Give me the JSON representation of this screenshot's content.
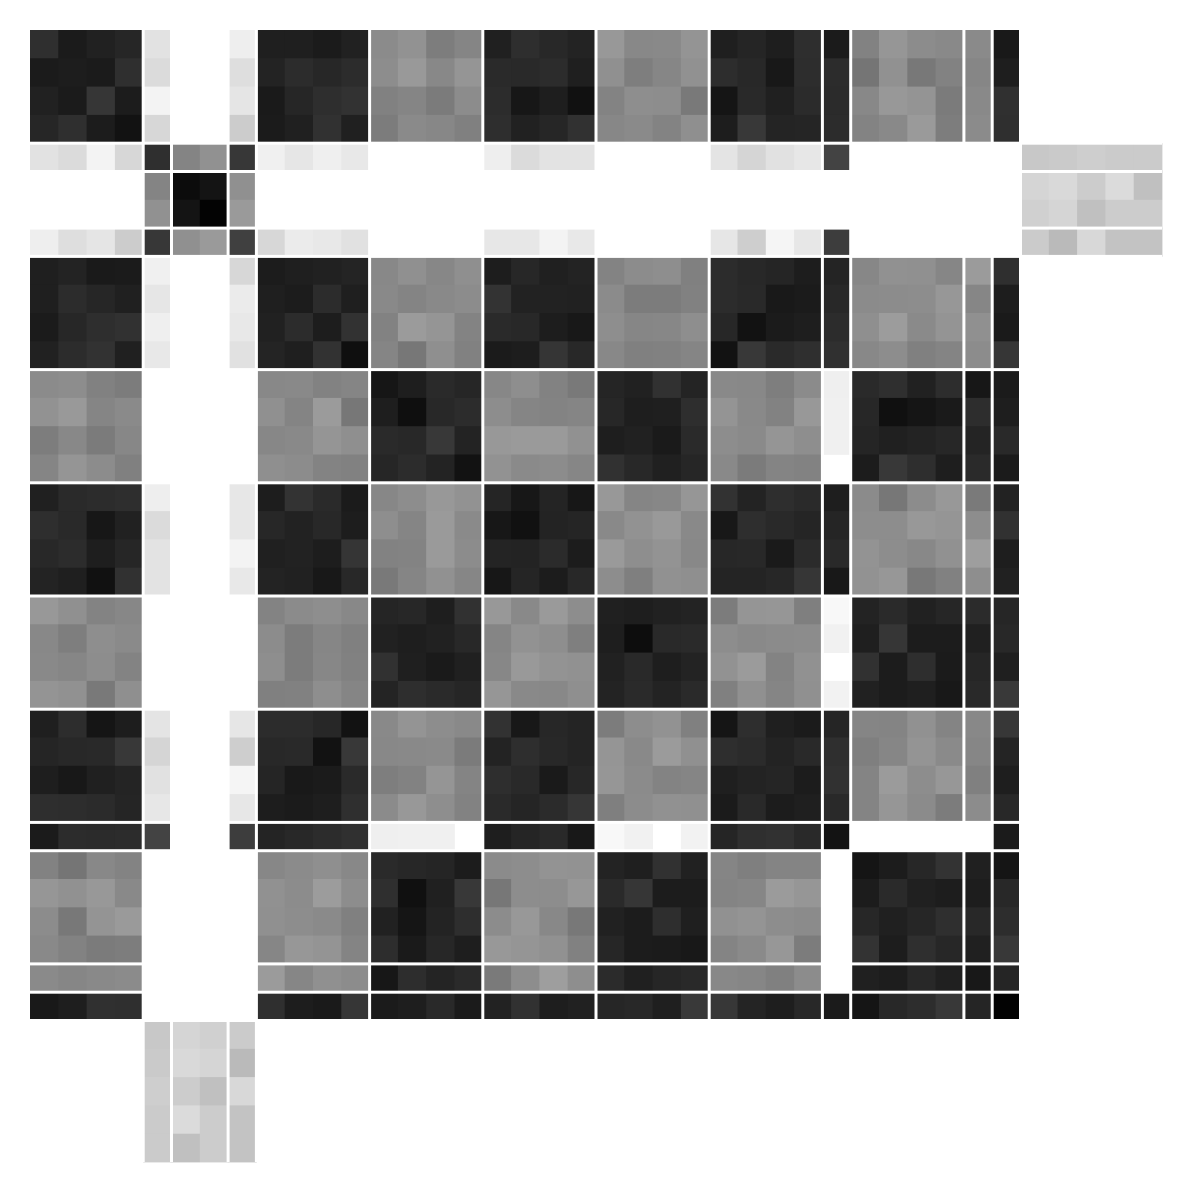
{
  "chart_data": {
    "type": "heatmap",
    "colormap": "gray_r",
    "value_range": [
      0,
      1
    ],
    "grid": false,
    "axes_visible": false,
    "title": "",
    "xlabel": "",
    "ylabel": "",
    "n_bins": 40,
    "clusters": [
      {
        "id": "A",
        "bins": 4
      },
      {
        "id": "B",
        "bins": 1
      },
      {
        "id": "C",
        "bins": 2
      },
      {
        "id": "B2",
        "bins": 1
      },
      {
        "id": "A2",
        "bins": 4
      },
      {
        "id": "D",
        "bins": 4
      },
      {
        "id": "A3",
        "bins": 4
      },
      {
        "id": "D2",
        "bins": 4
      },
      {
        "id": "A4",
        "bins": 4
      },
      {
        "id": "E",
        "bins": 1
      },
      {
        "id": "D3",
        "bins": 4
      },
      {
        "id": "D4",
        "bins": 1
      },
      {
        "id": "F",
        "bins": 1
      },
      {
        "id": "G",
        "bins": 5
      }
    ],
    "group_similarity": {
      "A": {
        "A": 0.95,
        "B": 0.2,
        "C": 0.0,
        "D": 0.55,
        "E": 0.95,
        "F": 0.95,
        "G": 0.0
      },
      "B": {
        "A": 0.2,
        "B": 0.85,
        "C": 0.55,
        "D": 0.0,
        "E": 0.9,
        "F": 0.0,
        "G": 0.3
      },
      "C": {
        "A": 0.0,
        "B": 0.55,
        "C": 1.0,
        "D": 0.0,
        "E": 0.0,
        "F": 0.0,
        "G": 0.3
      },
      "D": {
        "A": 0.55,
        "B": 0.0,
        "C": 0.0,
        "D": 0.95,
        "E": 0.1,
        "F": 0.95,
        "G": 0.0
      },
      "E": {
        "A": 0.95,
        "B": 0.9,
        "C": 0.0,
        "D": 0.1,
        "E": 1.0,
        "F": 0.9,
        "G": 0.0
      },
      "F": {
        "A": 0.95,
        "B": 0.0,
        "C": 0.0,
        "D": 0.95,
        "E": 0.9,
        "F": 1.0,
        "G": 0.0
      },
      "G": {
        "A": 0.0,
        "B": 0.3,
        "C": 0.3,
        "D": 0.0,
        "E": 0.0,
        "F": 0.0,
        "G": 0.0
      }
    },
    "cluster_group": {
      "A": "A",
      "A2": "A",
      "A3": "A",
      "A4": "A",
      "B": "B",
      "B2": "B",
      "C": "C",
      "D": "D",
      "D2": "D",
      "D3": "D",
      "D4": "D",
      "E": "E",
      "F": "F",
      "G": "G"
    }
  }
}
